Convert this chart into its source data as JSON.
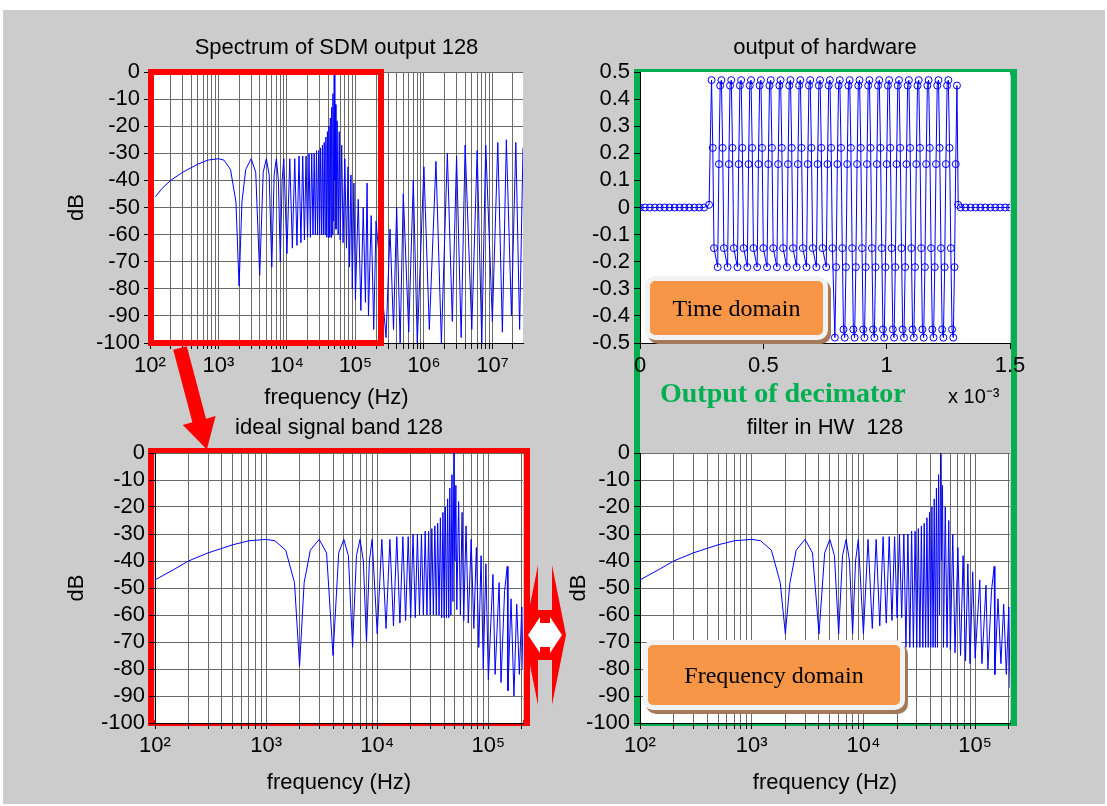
{
  "chart_data": [
    {
      "type": "line",
      "title": "Spectrum of SDM output 128",
      "xlabel": "frequency (Hz)",
      "ylabel": "dB",
      "log": "x",
      "grid": true,
      "xlim": [
        100,
        28000000
      ],
      "ylim": [
        -100,
        0
      ],
      "xticks": [
        {
          "value": 100,
          "label": "10²"
        },
        {
          "value": 200,
          "label": null
        },
        {
          "value": 300,
          "label": null
        },
        {
          "value": 400,
          "label": null
        },
        {
          "value": 500,
          "label": null
        },
        {
          "value": 600,
          "label": null
        },
        {
          "value": 700,
          "label": null
        },
        {
          "value": 800,
          "label": null
        },
        {
          "value": 900,
          "label": null
        },
        {
          "value": 1000,
          "label": "10³"
        },
        {
          "value": 2000,
          "label": null
        },
        {
          "value": 3000,
          "label": null
        },
        {
          "value": 4000,
          "label": null
        },
        {
          "value": 5000,
          "label": null
        },
        {
          "value": 6000,
          "label": null
        },
        {
          "value": 7000,
          "label": null
        },
        {
          "value": 8000,
          "label": null
        },
        {
          "value": 9000,
          "label": null
        },
        {
          "value": 10000,
          "label": "10⁴"
        },
        {
          "value": 20000,
          "label": null
        },
        {
          "value": 30000,
          "label": null
        },
        {
          "value": 40000,
          "label": null
        },
        {
          "value": 50000,
          "label": null
        },
        {
          "value": 60000,
          "label": null
        },
        {
          "value": 70000,
          "label": null
        },
        {
          "value": 80000,
          "label": null
        },
        {
          "value": 90000,
          "label": null
        },
        {
          "value": 100000,
          "label": "10⁵"
        },
        {
          "value": 200000,
          "label": null
        },
        {
          "value": 300000,
          "label": null
        },
        {
          "value": 400000,
          "label": null
        },
        {
          "value": 500000,
          "label": null
        },
        {
          "value": 600000,
          "label": null
        },
        {
          "value": 700000,
          "label": null
        },
        {
          "value": 800000,
          "label": null
        },
        {
          "value": 900000,
          "label": null
        },
        {
          "value": 1000000,
          "label": "10⁶"
        },
        {
          "value": 2000000,
          "label": null
        },
        {
          "value": 3000000,
          "label": null
        },
        {
          "value": 4000000,
          "label": null
        },
        {
          "value": 5000000,
          "label": null
        },
        {
          "value": 6000000,
          "label": null
        },
        {
          "value": 7000000,
          "label": null
        },
        {
          "value": 8000000,
          "label": null
        },
        {
          "value": 9000000,
          "label": null
        },
        {
          "value": 10000000,
          "label": "10⁷"
        },
        {
          "value": 20000000,
          "label": null
        }
      ],
      "yticks": [
        0,
        -10,
        -20,
        -30,
        -40,
        -50,
        -60,
        -70,
        -80,
        -90,
        -100
      ],
      "series": [
        {
          "color": "#0000ff",
          "x": [
            120,
            150,
            200,
            300,
            500,
            700,
            1000,
            1200,
            1500,
            1800,
            2000,
            2200,
            2500,
            3000,
            3500,
            4000,
            4500,
            5000,
            5500,
            6000,
            6500,
            7000,
            7500,
            8000,
            8500,
            9000,
            10000,
            11000,
            12000,
            13000,
            14000,
            15000,
            16000,
            17000,
            18000,
            19000,
            20000,
            21000,
            22000,
            23000,
            24000,
            25000,
            26000,
            27000,
            28000,
            29000,
            30000,
            31000,
            32000,
            33000,
            34000,
            35000,
            36000,
            37000,
            38000,
            39000,
            40000,
            41000,
            42000,
            43000,
            44000,
            45000,
            46000,
            47000,
            48000,
            49000,
            50000,
            51000,
            52000,
            54000,
            56000,
            58000,
            60000,
            63000,
            66000,
            70000,
            74000,
            78000,
            82000,
            86000,
            90000,
            95000,
            100000,
            110000,
            120000,
            130000,
            140000,
            148000,
            155000,
            170000,
            185000,
            200000,
            280000,
            320000,
            360000,
            400000,
            450000,
            500000,
            600000,
            700000,
            800000,
            1000000,
            1200000,
            1500000,
            1800000,
            2200000,
            2600000,
            3000000,
            3500000,
            4000000,
            5000000,
            6000000,
            7000000,
            8000000,
            10000000,
            12000000,
            14000000,
            16000000,
            19000000,
            22000000,
            25000000,
            28000000
          ],
          "values": [
            -46,
            -43,
            -40,
            -37,
            -34,
            -32.5,
            -32,
            -32.5,
            -36,
            -48,
            -79,
            -48,
            -36,
            -32,
            -37,
            -75,
            -37,
            -32,
            -38,
            -72,
            -38,
            -32,
            -40,
            -70,
            -40,
            -32,
            -67,
            -32,
            -65,
            -32,
            -64,
            -31,
            -63,
            -31,
            -62,
            -31,
            -61,
            -30,
            -61,
            -30,
            -60,
            -30,
            -60,
            -29,
            -60,
            -29,
            -60,
            -28,
            -60,
            -27,
            -60,
            -26,
            -60,
            -24,
            -61,
            -22,
            -61,
            -20,
            -61,
            -17,
            -61,
            -13,
            -60,
            -8,
            -55,
            0,
            -40,
            -12,
            -58,
            -18,
            -60,
            -22,
            -62,
            -27,
            -63,
            -32,
            -65,
            -35,
            -72,
            -38,
            -80,
            -41,
            -84,
            -47,
            -88,
            -50,
            -85,
            -41,
            -90,
            -53,
            -95,
            -55,
            -98,
            -58,
            -95,
            -50,
            -100,
            -45,
            -96,
            -40,
            -100,
            -35,
            -95,
            -33,
            -100,
            -30,
            -92,
            -31,
            -98,
            -27,
            -95,
            -29,
            -100,
            -27,
            -92,
            -26,
            -96,
            -25,
            -90,
            -26,
            -95,
            -28
          ]
        }
      ]
    },
    {
      "type": "line",
      "title": "output of hardware",
      "marker": "circle",
      "xlim": [
        0,
        1.5
      ],
      "ylim": [
        -0.5,
        0.5
      ],
      "xticks": [
        0,
        0.5,
        1,
        1.5
      ],
      "yticks": [
        -0.5,
        -0.4,
        -0.3,
        -0.2,
        -0.1,
        0,
        0.1,
        0.2,
        0.3,
        0.4,
        0.5
      ],
      "annotations": [
        "Time domain",
        "Output of decimator",
        "x 10⁻³"
      ],
      "series": [
        {
          "color": "#0000ff",
          "x": [
            0,
            0.02,
            0.04,
            0.06,
            0.08,
            0.1,
            0.12,
            0.14,
            0.16,
            0.18,
            0.2,
            0.22,
            0.24,
            0.26,
            0.28,
            0.29,
            0.295,
            0.3,
            0.305,
            0.31,
            0.315,
            0.32,
            0.325,
            0.33,
            0.335,
            0.34,
            0.345,
            0.35,
            0.355,
            0.36,
            0.365,
            0.37,
            0.375,
            0.38,
            0.385,
            0.39,
            0.395,
            0.4,
            0.405,
            0.41,
            0.415,
            0.42,
            0.425,
            0.43,
            0.435,
            0.44,
            0.445,
            0.45,
            0.455,
            0.46,
            0.465,
            0.47,
            0.475,
            0.48,
            0.485,
            0.49,
            0.495,
            0.5,
            0.505,
            0.51,
            0.515,
            0.52,
            0.525,
            0.53,
            0.535,
            0.54,
            0.545,
            0.55,
            0.555,
            0.56,
            0.565,
            0.57,
            0.575,
            0.58,
            0.585,
            0.59,
            0.595,
            0.6,
            0.605,
            0.61,
            0.615,
            0.62,
            0.625,
            0.63,
            0.635,
            0.64,
            0.645,
            0.65,
            0.655,
            0.66,
            0.665,
            0.67,
            0.675,
            0.68,
            0.685,
            0.69,
            0.695,
            0.7,
            0.705,
            0.71,
            0.715,
            0.72,
            0.725,
            0.73,
            0.735,
            0.74,
            0.745,
            0.75,
            0.755,
            0.76,
            0.765,
            0.77,
            0.775,
            0.78,
            0.785,
            0.79,
            0.795,
            0.8,
            0.805,
            0.81,
            0.815,
            0.82,
            0.825,
            0.83,
            0.835,
            0.84,
            0.845,
            0.85,
            0.855,
            0.86,
            0.865,
            0.87,
            0.875,
            0.88,
            0.885,
            0.89,
            0.895,
            0.9,
            0.905,
            0.91,
            0.915,
            0.92,
            0.925,
            0.93,
            0.935,
            0.94,
            0.945,
            0.95,
            0.955,
            0.96,
            0.965,
            0.97,
            0.975,
            0.98,
            0.985,
            0.99,
            0.995,
            1,
            1.005,
            1.01,
            1.015,
            1.02,
            1.025,
            1.03,
            1.035,
            1.04,
            1.045,
            1.05,
            1.055,
            1.06,
            1.065,
            1.07,
            1.075,
            1.08,
            1.085,
            1.09,
            1.095,
            1.1,
            1.105,
            1.11,
            1.115,
            1.12,
            1.125,
            1.13,
            1.135,
            1.14,
            1.145,
            1.15,
            1.155,
            1.16,
            1.165,
            1.17,
            1.175,
            1.18,
            1.185,
            1.19,
            1.195,
            1.2,
            1.205,
            1.21,
            1.215,
            1.22,
            1.225,
            1.23,
            1.235,
            1.24,
            1.245,
            1.25,
            1.255,
            1.26,
            1.265,
            1.27,
            1.275,
            1.28,
            1.285,
            1.29,
            1.3,
            1.32,
            1.34,
            1.36,
            1.38,
            1.4,
            1.42,
            1.44,
            1.46,
            1.48,
            1.5
          ],
          "values": [
            0,
            0,
            0,
            0,
            0,
            0,
            0,
            0,
            0,
            0,
            0,
            0,
            0,
            0,
            0.01,
            0.47,
            0.22,
            -0.15,
            null,
            null,
            -0.22,
            0.16,
            0.45,
            0.47,
            0.22,
            -0.15,
            null,
            null,
            -0.22,
            0.16,
            0.45,
            0.47,
            0.22,
            -0.15,
            null,
            null,
            -0.22,
            0.16,
            0.45,
            0.47,
            0.22,
            -0.15,
            null,
            null,
            -0.22,
            0.16,
            0.45,
            0.47,
            0.22,
            -0.15,
            null,
            null,
            -0.22,
            0.16,
            0.45,
            0.47,
            0.22,
            -0.15,
            null,
            null,
            -0.22,
            0.16,
            0.45,
            0.47,
            0.22,
            -0.15,
            null,
            null,
            -0.22,
            0.16,
            0.45,
            0.47,
            0.22,
            -0.15,
            null,
            null,
            -0.22,
            0.16,
            0.45,
            0.47,
            0.22,
            -0.15,
            null,
            null,
            -0.22,
            0.16,
            0.45,
            0.47,
            0.22,
            -0.15,
            null,
            null,
            -0.22,
            0.16,
            0.45,
            0.47,
            0.22,
            -0.15,
            null,
            null,
            -0.22,
            0.16,
            0.45,
            0.47,
            0.22,
            -0.15,
            null,
            null,
            -0.22,
            0.16,
            0.45,
            0.47,
            0.22,
            -0.15,
            null,
            -0.48,
            -0.22,
            0.16,
            0.45,
            0.47,
            0.22,
            -0.15,
            -0.45,
            -0.48,
            -0.22,
            0.16,
            0.45,
            0.47,
            0.22,
            -0.15,
            -0.45,
            -0.48,
            -0.22,
            0.16,
            0.45,
            0.47,
            0.22,
            -0.15,
            -0.45,
            -0.48,
            -0.22,
            0.16,
            0.45,
            0.47,
            0.22,
            -0.15,
            -0.45,
            -0.48,
            -0.22,
            0.16,
            0.45,
            0.47,
            0.22,
            -0.15,
            -0.45,
            -0.48,
            -0.22,
            0.16,
            0.45,
            0.47,
            0.22,
            -0.15,
            -0.45,
            -0.48,
            -0.22,
            0.16,
            0.45,
            0.47,
            0.22,
            -0.15,
            -0.45,
            -0.48,
            -0.22,
            0.16,
            0.45,
            0.47,
            0.22,
            -0.15,
            -0.45,
            -0.48,
            -0.22,
            0.16,
            0.45,
            0.47,
            0.22,
            -0.15,
            -0.45,
            -0.48,
            -0.22,
            0.16,
            0.45,
            0.47,
            0.22,
            -0.15,
            -0.45,
            -0.48,
            -0.22,
            0.16,
            0.45,
            0.47,
            0.22,
            -0.15,
            -0.45,
            -0.48,
            -0.22,
            0.16,
            0.45,
            0.47,
            0.22,
            -0.15,
            -0.45,
            -0.48,
            -0.22,
            0.16,
            0.45,
            0.01,
            0,
            0,
            0,
            0,
            0,
            0,
            0,
            0,
            0,
            0,
            0
          ]
        }
      ]
    },
    {
      "type": "line",
      "title": "ideal signal band 128",
      "xlabel": "frequency (Hz)",
      "ylabel": "dB",
      "log": "x",
      "grid": true,
      "xlim": [
        100,
        205000
      ],
      "ylim": [
        -100,
        0
      ],
      "xticks": [
        {
          "value": 100,
          "label": "10²"
        },
        {
          "value": 200,
          "label": null
        },
        {
          "value": 300,
          "label": null
        },
        {
          "value": 400,
          "label": null
        },
        {
          "value": 500,
          "label": null
        },
        {
          "value": 600,
          "label": null
        },
        {
          "value": 700,
          "label": null
        },
        {
          "value": 800,
          "label": null
        },
        {
          "value": 900,
          "label": null
        },
        {
          "value": 1000,
          "label": "10³"
        },
        {
          "value": 2000,
          "label": null
        },
        {
          "value": 3000,
          "label": null
        },
        {
          "value": 4000,
          "label": null
        },
        {
          "value": 5000,
          "label": null
        },
        {
          "value": 6000,
          "label": null
        },
        {
          "value": 7000,
          "label": null
        },
        {
          "value": 8000,
          "label": null
        },
        {
          "value": 9000,
          "label": null
        },
        {
          "value": 10000,
          "label": "10⁴"
        },
        {
          "value": 20000,
          "label": null
        },
        {
          "value": 30000,
          "label": null
        },
        {
          "value": 40000,
          "label": null
        },
        {
          "value": 50000,
          "label": null
        },
        {
          "value": 60000,
          "label": null
        },
        {
          "value": 70000,
          "label": null
        },
        {
          "value": 80000,
          "label": null
        },
        {
          "value": 90000,
          "label": null
        },
        {
          "value": 100000,
          "label": "10⁵"
        },
        {
          "value": 200000,
          "label": null
        }
      ],
      "yticks": [
        0,
        -10,
        -20,
        -30,
        -40,
        -50,
        -60,
        -70,
        -80,
        -90,
        -100
      ],
      "series": [
        {
          "color": "#0000ff",
          "x": [
            100,
            150,
            200,
            300,
            500,
            700,
            1000,
            1200,
            1500,
            1800,
            2000,
            2200,
            2500,
            3000,
            3500,
            4000,
            4500,
            5000,
            5500,
            6000,
            6500,
            7000,
            7500,
            8000,
            8500,
            9000,
            10000,
            11000,
            12000,
            13000,
            14000,
            15000,
            16000,
            17000,
            18000,
            19000,
            20000,
            21000,
            22000,
            23000,
            24000,
            25000,
            26000,
            27000,
            28000,
            29000,
            30000,
            31000,
            32000,
            33000,
            34000,
            35000,
            36000,
            37000,
            38000,
            39000,
            40000,
            41000,
            42000,
            43000,
            44000,
            45000,
            46000,
            47000,
            48000,
            49000,
            50000,
            51000,
            52000,
            54000,
            56000,
            58000,
            60000,
            63000,
            66000,
            70000,
            74000,
            78000,
            82000,
            86000,
            90000,
            95000,
            100000,
            110000,
            115000,
            125000,
            130000,
            140000,
            148000,
            150000,
            160000,
            170000,
            180000,
            190000,
            200000,
            205000
          ],
          "values": [
            -47,
            -43,
            -40,
            -37,
            -34,
            -32.5,
            -32,
            -32.5,
            -36,
            -48,
            -79,
            -48,
            -36,
            -32,
            -37,
            -75,
            -37,
            -32,
            -38,
            -72,
            -38,
            -32,
            -40,
            -70,
            -40,
            -32,
            -67,
            -32,
            -65,
            -32,
            -64,
            -31,
            -63,
            -31,
            -62,
            -31,
            -61,
            -30,
            -61,
            -30,
            -60,
            -30,
            -60,
            -29,
            -60,
            -29,
            -60,
            -28,
            -60,
            -27,
            -60,
            -26,
            -60,
            -24,
            -61,
            -22,
            -61,
            -20,
            -61,
            -17,
            -61,
            -13,
            -60,
            -8,
            -55,
            0,
            -40,
            -12,
            -58,
            -18,
            -60,
            -22,
            -62,
            -27,
            -63,
            -32,
            -65,
            -35,
            -72,
            -38,
            -80,
            -41,
            -84,
            -45,
            -82,
            -48,
            -85,
            -51,
            -42,
            -88,
            -54,
            -90,
            -56,
            -82,
            -57,
            -80
          ]
        }
      ]
    },
    {
      "type": "line",
      "title": "filter in HW  128",
      "xlabel": "frequency (Hz)",
      "ylabel": "dB",
      "log": "x",
      "grid": true,
      "xlim": [
        100,
        205000
      ],
      "ylim": [
        -100,
        0
      ],
      "xticks": [
        {
          "value": 100,
          "label": "10²"
        },
        {
          "value": 200,
          "label": null
        },
        {
          "value": 300,
          "label": null
        },
        {
          "value": 400,
          "label": null
        },
        {
          "value": 500,
          "label": null
        },
        {
          "value": 600,
          "label": null
        },
        {
          "value": 700,
          "label": null
        },
        {
          "value": 800,
          "label": null
        },
        {
          "value": 900,
          "label": null
        },
        {
          "value": 1000,
          "label": "10³"
        },
        {
          "value": 2000,
          "label": null
        },
        {
          "value": 3000,
          "label": null
        },
        {
          "value": 4000,
          "label": null
        },
        {
          "value": 5000,
          "label": null
        },
        {
          "value": 6000,
          "label": null
        },
        {
          "value": 7000,
          "label": null
        },
        {
          "value": 8000,
          "label": null
        },
        {
          "value": 9000,
          "label": null
        },
        {
          "value": 10000,
          "label": "10⁴"
        },
        {
          "value": 20000,
          "label": null
        },
        {
          "value": 30000,
          "label": null
        },
        {
          "value": 40000,
          "label": null
        },
        {
          "value": 50000,
          "label": null
        },
        {
          "value": 60000,
          "label": null
        },
        {
          "value": 70000,
          "label": null
        },
        {
          "value": 80000,
          "label": null
        },
        {
          "value": 90000,
          "label": null
        },
        {
          "value": 100000,
          "label": "10⁵"
        },
        {
          "value": 200000,
          "label": null
        }
      ],
      "yticks": [
        0,
        -10,
        -20,
        -30,
        -40,
        -50,
        -60,
        -70,
        -80,
        -90,
        -100
      ],
      "annotations": [
        "Frequency domain"
      ],
      "series": [
        {
          "color": "#0000ff",
          "x": [
            100,
            150,
            200,
            300,
            500,
            700,
            1000,
            1200,
            1500,
            1800,
            2000,
            2200,
            2500,
            3000,
            3500,
            4000,
            4500,
            5000,
            5500,
            6000,
            6500,
            7000,
            7500,
            8000,
            8500,
            9000,
            10000,
            11000,
            12000,
            13000,
            14000,
            15000,
            16000,
            17000,
            18000,
            19000,
            20000,
            21000,
            22000,
            23000,
            24000,
            25000,
            26000,
            27000,
            28000,
            29000,
            30000,
            31000,
            32000,
            33000,
            34000,
            35000,
            36000,
            37000,
            38000,
            39000,
            40000,
            41000,
            42000,
            43000,
            44000,
            45000,
            46000,
            47000,
            48000,
            49000,
            50000,
            51000,
            52000,
            54000,
            56000,
            58000,
            60000,
            63000,
            66000,
            70000,
            74000,
            78000,
            82000,
            86000,
            90000,
            95000,
            100000,
            110000,
            115000,
            125000,
            130000,
            140000,
            148000,
            150000,
            160000,
            170000,
            180000,
            190000,
            200000,
            205000
          ],
          "values": [
            -47,
            -43,
            -40,
            -37,
            -34,
            -32.5,
            -32,
            -32.5,
            -36,
            -48,
            -67,
            -48,
            -36,
            -32,
            -37,
            -67,
            -37,
            -32,
            -38,
            -67,
            -38,
            -32,
            -40,
            -67,
            -40,
            -32,
            -67,
            -32,
            -65,
            -32,
            -64,
            -31,
            -63,
            -31,
            -62,
            -31,
            -61,
            -30,
            -61,
            -30,
            -72,
            -30,
            -72,
            -29,
            -72,
            -29,
            -72,
            -28,
            -72,
            -27,
            -72,
            -26,
            -72,
            -24,
            -72,
            -22,
            -72,
            -20,
            -72,
            -17,
            -72,
            -13,
            -72,
            -8,
            -60,
            0,
            -40,
            -12,
            -72,
            -20,
            -72,
            -25,
            -73,
            -30,
            -74,
            -35,
            -75,
            -38,
            -77,
            -41,
            -78,
            -44,
            -76,
            -47,
            -78,
            -49,
            -80,
            -51,
            -42,
            -82,
            -54,
            -78,
            -56,
            -82,
            -57,
            -87
          ]
        }
      ]
    }
  ]
}
